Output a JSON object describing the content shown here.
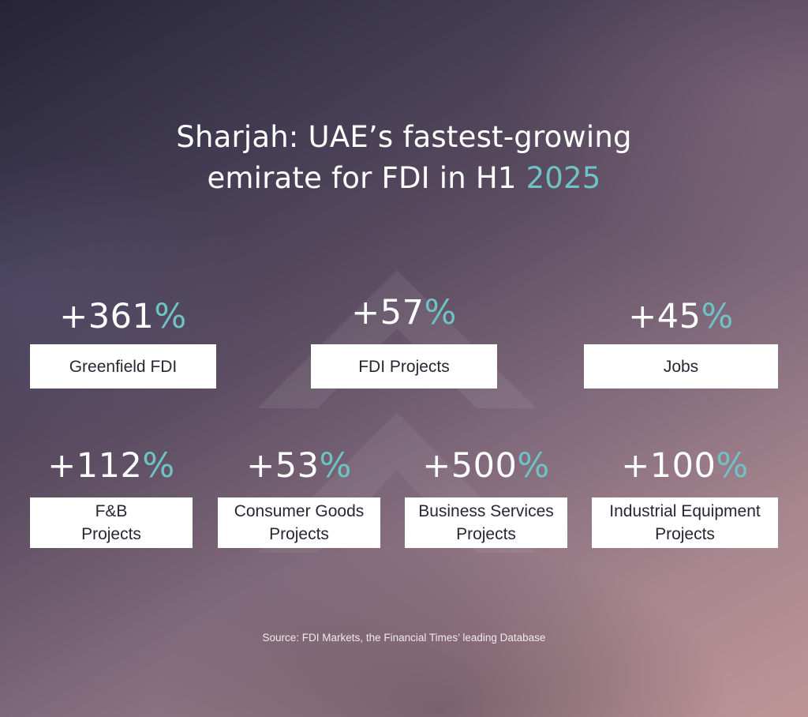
{
  "title": {
    "line1": "Sharjah: UAE’s fastest-growing",
    "line2_text": "emirate for FDI in H1 ",
    "line2_accent": "2025"
  },
  "stats_top": [
    {
      "value": "+361",
      "unit": "%",
      "label": "Greenfield FDI"
    },
    {
      "value": "+57",
      "unit": "%",
      "label": "FDI Projects"
    },
    {
      "value": "+45",
      "unit": "%",
      "label": "Jobs"
    }
  ],
  "stats_bottom": [
    {
      "value": "+112",
      "unit": "%",
      "label_line1": "F&B",
      "label_line2": "Projects"
    },
    {
      "value": "+53",
      "unit": "%",
      "label_line1": "Consumer Goods",
      "label_line2": "Projects"
    },
    {
      "value": "+500",
      "unit": "%",
      "label_line1": "Business Services",
      "label_line2": "Projects"
    },
    {
      "value": "+100",
      "unit": "%",
      "label_line1": "Industrial Equipment",
      "label_line2": "Projects"
    }
  ],
  "source": "Source: FDI Markets, the Financial Times’ leading Database",
  "colors": {
    "accent": "#6fc2c6",
    "label_box": "#ffffff",
    "label_text": "#2b2533"
  },
  "icons": [
    "chevron-up-icon",
    "chevron-up-icon"
  ]
}
